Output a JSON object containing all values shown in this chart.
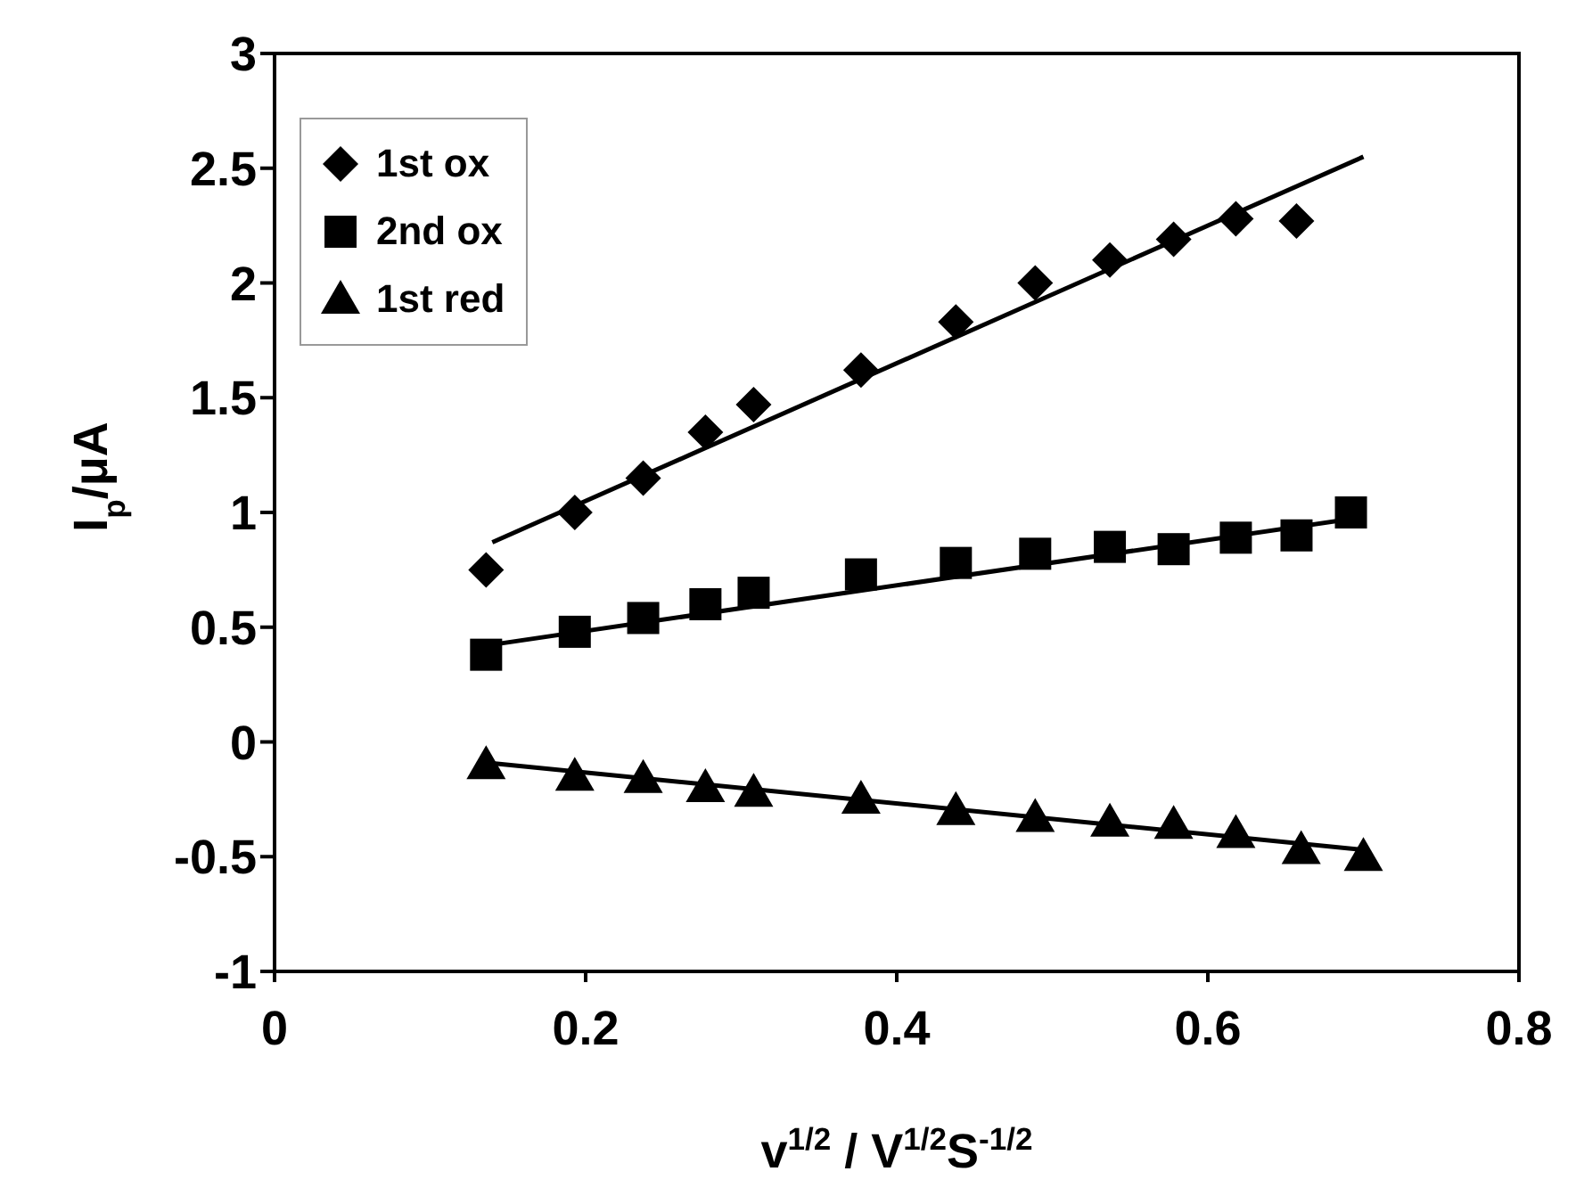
{
  "chart_data": {
    "type": "scatter",
    "xlabel": "v$^{1/2}$ / V$^{1/2}$S$^{-1/2}$",
    "ylabel": "I$_{p}$/μA",
    "xlim": [
      0,
      0.8
    ],
    "xticks": [
      0,
      0.2,
      0.4,
      0.6,
      0.8
    ],
    "ylim": [
      -1,
      3
    ],
    "yticks": [
      -1,
      -0.5,
      0,
      0.5,
      1,
      1.5,
      2,
      2.5,
      3
    ],
    "grid": false,
    "legend": "top left",
    "series": [
      {
        "name": "1st ox",
        "color": "#000000",
        "marker": "diamond",
        "x": [
          0.136,
          0.193,
          0.237,
          0.277,
          0.308,
          0.377,
          0.438,
          0.489,
          0.537,
          0.578,
          0.618,
          0.657
        ],
        "values": [
          0.75,
          1.0,
          1.15,
          1.35,
          1.47,
          1.62,
          1.83,
          2.0,
          2.1,
          2.19,
          2.28,
          2.27
        ]
      },
      {
        "name": "2nd ox",
        "color": "#000000",
        "marker": "square",
        "x": [
          0.136,
          0.193,
          0.237,
          0.277,
          0.308,
          0.377,
          0.438,
          0.489,
          0.537,
          0.578,
          0.618,
          0.657,
          0.692
        ],
        "values": [
          0.38,
          0.48,
          0.54,
          0.6,
          0.65,
          0.73,
          0.78,
          0.82,
          0.85,
          0.84,
          0.89,
          0.9,
          1.0
        ]
      },
      {
        "name": "1st red",
        "color": "#000000",
        "marker": "triangle",
        "x": [
          0.136,
          0.193,
          0.237,
          0.277,
          0.308,
          0.377,
          0.438,
          0.489,
          0.537,
          0.578,
          0.618,
          0.66,
          0.7
        ],
        "values": [
          -0.1,
          -0.15,
          -0.16,
          -0.2,
          -0.22,
          -0.25,
          -0.3,
          -0.33,
          -0.35,
          -0.36,
          -0.4,
          -0.47,
          -0.5
        ]
      },
      {
        "type": "line",
        "color": "#000000",
        "marker": "none",
        "x": [
          0.14,
          0.7
        ],
        "values": [
          0.87,
          2.55
        ]
      },
      {
        "type": "line",
        "color": "#000000",
        "marker": "none",
        "x": [
          0.136,
          0.7
        ],
        "values": [
          0.42,
          0.98
        ]
      },
      {
        "type": "line",
        "color": "#000000",
        "marker": "none",
        "x": [
          0.136,
          0.7
        ],
        "values": [
          -0.09,
          -0.47
        ]
      }
    ]
  }
}
